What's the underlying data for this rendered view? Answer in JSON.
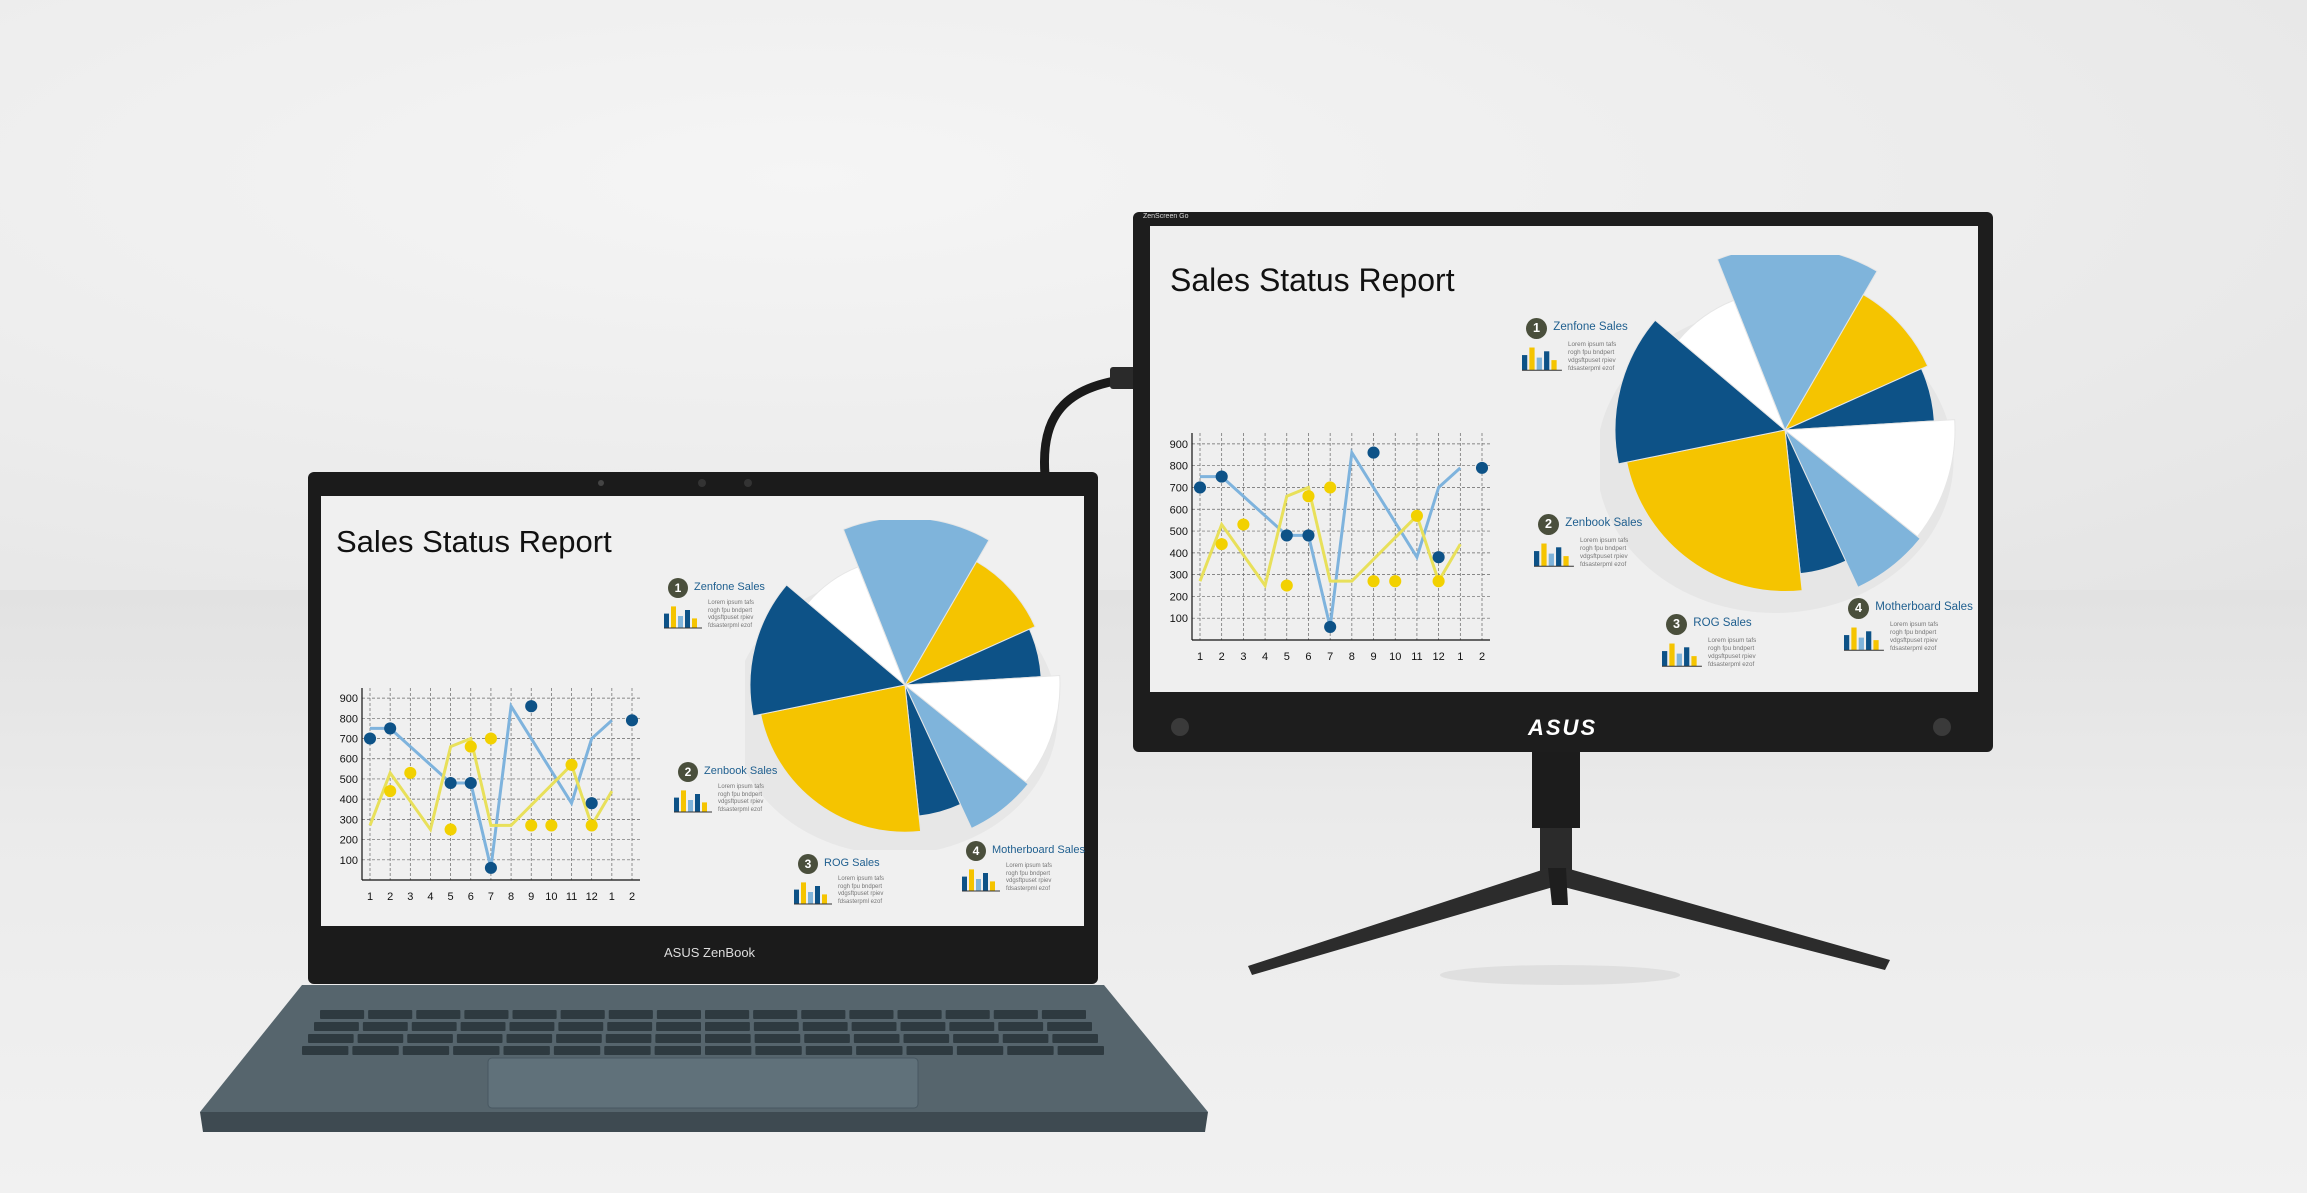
{
  "scene": {
    "laptop_brand": "ASUS ZenBook",
    "monitor_brand": "ASUS",
    "monitor_model_label": "ZenScreen Go"
  },
  "screen": {
    "title": "Sales Status Report",
    "legend": [
      {
        "number": "1",
        "label": "Zenfone Sales"
      },
      {
        "number": "2",
        "label": "Zenbook Sales"
      },
      {
        "number": "3",
        "label": "ROG Sales"
      },
      {
        "number": "4",
        "label": "Motherboard Sales"
      }
    ],
    "legend_filler": "Lorem ipsum tafs\nrogh fpu bndpert\nvdgsftpuset rpiev\nfdsasterpml ezof"
  },
  "chart_data": {
    "type": "line",
    "x": [
      "1",
      "2",
      "3",
      "4",
      "5",
      "6",
      "7",
      "8",
      "9",
      "10",
      "11",
      "12",
      "1",
      "2"
    ],
    "y_ticks": [
      900,
      800,
      700,
      600,
      500,
      400,
      300,
      200,
      100
    ],
    "ylim": [
      0,
      950
    ],
    "grid": true,
    "series": [
      {
        "color": "#7eb3dd",
        "values": [
          750,
          750,
          null,
          null,
          480,
          480,
          60,
          860,
          null,
          null,
          380,
          700,
          790,
          null
        ]
      },
      {
        "color": "#e8e05a",
        "values": [
          270,
          530,
          null,
          250,
          660,
          700,
          270,
          270,
          null,
          null,
          570,
          270,
          440,
          null
        ]
      }
    ],
    "markers": [
      {
        "series": 0,
        "x": "2",
        "y": 750,
        "color": "#0d5287"
      },
      {
        "series": 0,
        "x": "5",
        "y": 480,
        "color": "#0d5287"
      },
      {
        "series": 0,
        "x": "6",
        "y": 480,
        "color": "#0d5287"
      },
      {
        "series": 0,
        "x": "7",
        "y": 60,
        "color": "#0d5287"
      },
      {
        "series": 0,
        "x": "9",
        "y": 860,
        "color": "#0d5287"
      },
      {
        "series": 0,
        "x": "12",
        "y": 380,
        "color": "#0d5287"
      },
      {
        "series": 0,
        "x": "1",
        "y": 700,
        "color": "#0d5287"
      },
      {
        "series": 0,
        "x": "2",
        "y": 790,
        "color": "#0d5287"
      },
      {
        "series": 1,
        "x": "3",
        "y": 530,
        "color": "#f2d100"
      },
      {
        "series": 1,
        "x": "5",
        "y": 250,
        "color": "#f2d100"
      },
      {
        "series": 1,
        "x": "6",
        "y": 660,
        "color": "#f2d100"
      },
      {
        "series": 1,
        "x": "7",
        "y": 700,
        "color": "#f2d100"
      },
      {
        "series": 1,
        "x": "9",
        "y": 270,
        "color": "#f2d100"
      },
      {
        "series": 1,
        "x": "10",
        "y": 270,
        "color": "#f2d100"
      },
      {
        "series": 1,
        "x": "11",
        "y": 570,
        "color": "#f2d100"
      },
      {
        "series": 1,
        "x": "12",
        "y": 270,
        "color": "#f2d100"
      },
      {
        "series": 1,
        "x": "2",
        "y": 440,
        "color": "#f2d100"
      }
    ]
  },
  "pie": {
    "slices": [
      {
        "color": "#7fb4db"
      },
      {
        "color": "#f5c400"
      },
      {
        "color": "#0d5287"
      },
      {
        "color": "#ffffff"
      },
      {
        "color": "#7fb4db"
      },
      {
        "color": "#0d5287"
      },
      {
        "color": "#f5c400"
      },
      {
        "color": "#0d5287"
      },
      {
        "color": "#ffffff"
      }
    ]
  }
}
